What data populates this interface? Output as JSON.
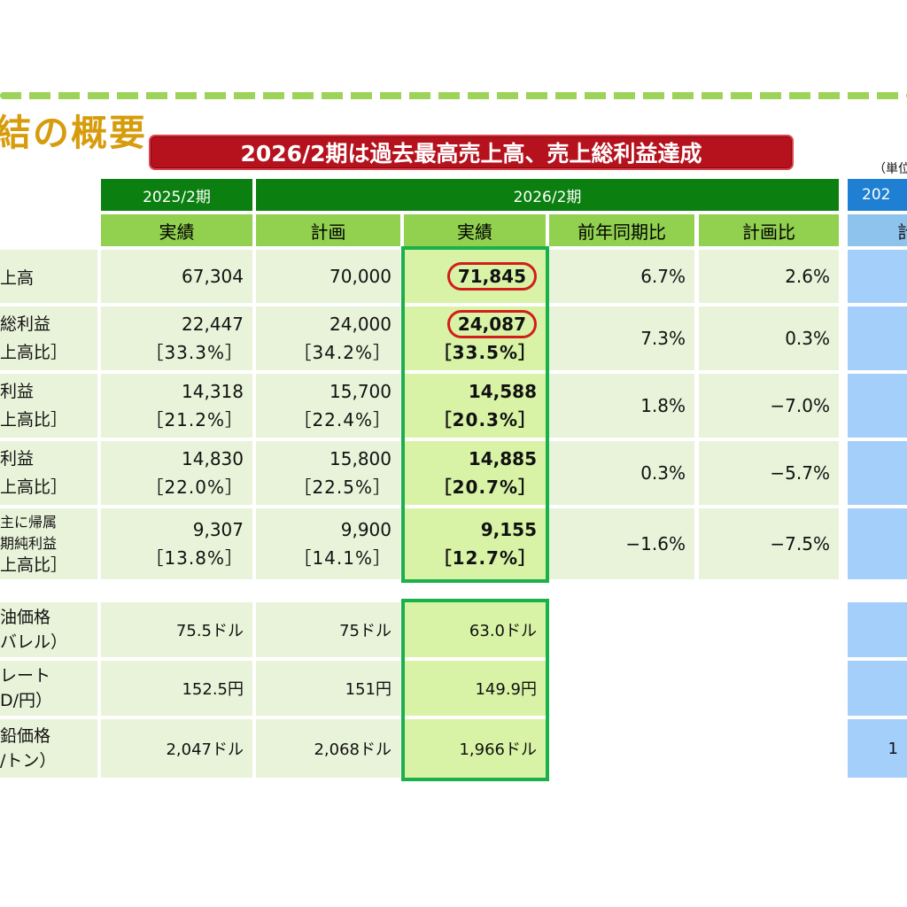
{
  "title": "結の概要",
  "banner": "2026/2期は過去最高売上高、売上総利益達成",
  "unit": "（単位",
  "periods": {
    "prev": "2025/2期",
    "curr": "2026/2期",
    "next": "202"
  },
  "headers": {
    "actual": "実績",
    "plan": "計画",
    "yoy": "前年同期比",
    "vs_plan": "計画比",
    "next_plan": "計"
  },
  "rows": [
    {
      "label": [
        "上高"
      ],
      "prev": [
        "67,304"
      ],
      "plan": [
        "70,000"
      ],
      "actual": [
        "71,845"
      ],
      "yoy": "6.7%",
      "vs_plan": "2.6%",
      "next": [
        ""
      ]
    },
    {
      "label": [
        "総利益",
        "上高比］"
      ],
      "prev": [
        "22,447",
        "［33.3%］"
      ],
      "plan": [
        "24,000",
        "［34.2%］"
      ],
      "actual": [
        "24,087",
        "［33.5%］"
      ],
      "yoy": "7.3%",
      "vs_plan": "0.3%",
      "next": [
        "［"
      ]
    },
    {
      "label": [
        "利益",
        "上高比］"
      ],
      "prev": [
        "14,318",
        "［21.2%］"
      ],
      "plan": [
        "15,700",
        "［22.4%］"
      ],
      "actual": [
        "14,588",
        "［20.3%］"
      ],
      "yoy": "1.8%",
      "vs_plan": "−7.0%",
      "next": [
        "［"
      ]
    },
    {
      "label": [
        "利益",
        "上高比］"
      ],
      "prev": [
        "14,830",
        "［22.0%］"
      ],
      "plan": [
        "15,800",
        "［22.5%］"
      ],
      "actual": [
        "14,885",
        "［20.7%］"
      ],
      "yoy": "0.3%",
      "vs_plan": "−5.7%",
      "next": [
        "［"
      ]
    },
    {
      "label": [
        "主に帰属",
        "期純利益",
        "上高比］"
      ],
      "prev": [
        "9,307",
        "［13.8%］"
      ],
      "plan": [
        "9,900",
        "［14.1%］"
      ],
      "actual": [
        "9,155",
        "［12.7%］"
      ],
      "yoy": "−1.6%",
      "vs_plan": "−7.5%",
      "next": [
        "［"
      ]
    }
  ],
  "market_rows": [
    {
      "label": [
        "油価格",
        "バレル）"
      ],
      "prev": "75.5ドル",
      "plan": "75ドル",
      "actual": "63.0ドル",
      "next": ""
    },
    {
      "label": [
        "レート",
        "D/円）"
      ],
      "prev": "152.5円",
      "plan": "151円",
      "actual": "149.9円",
      "next": ""
    },
    {
      "label": [
        "鉛価格",
        "/トン）"
      ],
      "prev": "2,047ドル",
      "plan": "2,068ドル",
      "actual": "1,966ドル",
      "next": "1"
    }
  ],
  "colors": {
    "dark_green": "#0b7f0f",
    "header_green": "#92d050",
    "row_green": "#e9f3d9",
    "highlight": "#d8f3a5",
    "banner_red": "#b6121e",
    "blue_header": "#1f7fd3",
    "blue_cell": "#a3cffa",
    "title_gold": "#d79c0c"
  }
}
